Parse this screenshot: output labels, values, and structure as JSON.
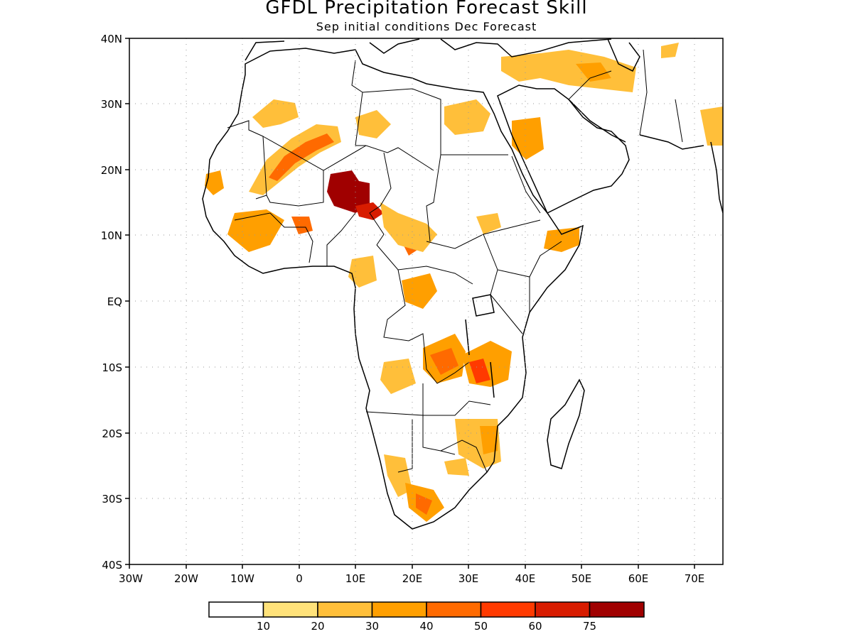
{
  "title": "GFDL Precipitation Forecast Skill",
  "subtitle": "Sep initial conditions  Dec Forecast",
  "axes": {
    "lat_ticks": [
      "40N",
      "30N",
      "20N",
      "10N",
      "EQ",
      "10S",
      "20S",
      "30S",
      "40S"
    ],
    "lon_ticks": [
      "30W",
      "20W",
      "10W",
      "0",
      "10E",
      "20E",
      "30E",
      "40E",
      "50E",
      "60E",
      "70E"
    ]
  },
  "legend": {
    "thresholds": [
      "10",
      "20",
      "30",
      "40",
      "50",
      "60",
      "75"
    ],
    "colors": [
      "#ffffff",
      "#ffe27a",
      "#ffbf3a",
      "#ff9f00",
      "#ff6a00",
      "#ff3a00",
      "#d81c00",
      "#a00000"
    ]
  }
}
